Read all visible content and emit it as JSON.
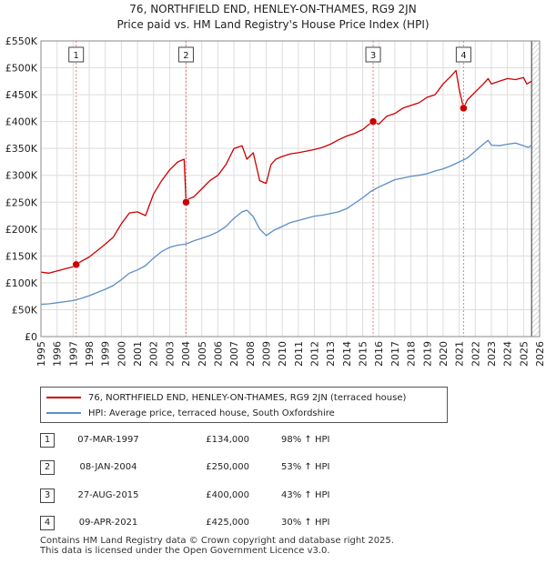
{
  "title_line1": "76, NORTHFIELD END, HENLEY-ON-THAMES, RG9 2JN",
  "title_line2": "Price paid vs. HM Land Registry's House Price Index (HPI)",
  "legend": {
    "property": "76, NORTHFIELD END, HENLEY-ON-THAMES, RG9 2JN (terraced house)",
    "hpi": "HPI: Average price, terraced house, South Oxfordshire"
  },
  "sales": [
    {
      "num": "1",
      "date": "07-MAR-1997",
      "price": "£134,000",
      "hpi": "98% ↑ HPI"
    },
    {
      "num": "2",
      "date": "08-JAN-2004",
      "price": "£250,000",
      "hpi": "53% ↑ HPI"
    },
    {
      "num": "3",
      "date": "27-AUG-2015",
      "price": "£400,000",
      "hpi": "43% ↑ HPI"
    },
    {
      "num": "4",
      "date": "09-APR-2021",
      "price": "£425,000",
      "hpi": "30% ↑ HPI"
    }
  ],
  "footer_line1": "Contains HM Land Registry data © Crown copyright and database right 2025.",
  "footer_line2": "This data is licensed under the Open Government Licence v3.0.",
  "colors": {
    "property": "#cc0000",
    "hpi": "#5b8ec6",
    "grid": "#dddddd",
    "marker_line": "#e08080"
  },
  "chart_data": {
    "type": "line",
    "title": "76, NORTHFIELD END, HENLEY-ON-THAMES, RG9 2JN — Price paid vs. HM Land Registry's House Price Index (HPI)",
    "xlabel": "",
    "ylabel": "",
    "xlim": [
      1995,
      2026
    ],
    "ylim": [
      0,
      550000
    ],
    "x_ticks": [
      1995,
      1996,
      1997,
      1998,
      1999,
      2000,
      2001,
      2002,
      2003,
      2004,
      2005,
      2006,
      2007,
      2008,
      2009,
      2010,
      2011,
      2012,
      2013,
      2014,
      2015,
      2016,
      2017,
      2018,
      2019,
      2020,
      2021,
      2022,
      2023,
      2024,
      2025,
      2026
    ],
    "y_ticks": [
      {
        "value": 0,
        "label": "£0"
      },
      {
        "value": 50000,
        "label": "£50K"
      },
      {
        "value": 100000,
        "label": "£100K"
      },
      {
        "value": 150000,
        "label": "£150K"
      },
      {
        "value": 200000,
        "label": "£200K"
      },
      {
        "value": 250000,
        "label": "£250K"
      },
      {
        "value": 300000,
        "label": "£300K"
      },
      {
        "value": 350000,
        "label": "£350K"
      },
      {
        "value": 400000,
        "label": "£400K"
      },
      {
        "value": 450000,
        "label": "£450K"
      },
      {
        "value": 500000,
        "label": "£500K"
      },
      {
        "value": 550000,
        "label": "£550K"
      }
    ],
    "series": [
      {
        "name": "76, NORTHFIELD END, HENLEY-ON-THAMES, RG9 2JN (terraced house)",
        "x": [
          1995.0,
          1995.5,
          1996.0,
          1996.5,
          1997.0,
          1997.19,
          1997.5,
          1998.0,
          1998.5,
          1999.0,
          1999.5,
          2000.0,
          2000.5,
          2001.0,
          2001.5,
          2002.0,
          2002.5,
          2003.0,
          2003.5,
          2003.9,
          2004.02,
          2004.1,
          2004.5,
          2005.0,
          2005.5,
          2006.0,
          2006.5,
          2007.0,
          2007.5,
          2007.8,
          2008.2,
          2008.6,
          2009.0,
          2009.3,
          2009.6,
          2010.0,
          2010.5,
          2011.0,
          2011.5,
          2012.0,
          2012.5,
          2013.0,
          2013.5,
          2014.0,
          2014.5,
          2015.0,
          2015.4,
          2015.65,
          2016.0,
          2016.5,
          2017.0,
          2017.5,
          2018.0,
          2018.5,
          2019.0,
          2019.5,
          2020.0,
          2020.5,
          2020.8,
          2021.0,
          2021.27,
          2021.5,
          2022.0,
          2022.5,
          2022.8,
          2023.0,
          2023.5,
          2024.0,
          2024.5,
          2025.0,
          2025.2,
          2025.5
        ],
        "y": [
          120000,
          118000,
          122000,
          126000,
          130000,
          134000,
          140000,
          148000,
          160000,
          172000,
          185000,
          210000,
          230000,
          232000,
          225000,
          265000,
          290000,
          310000,
          325000,
          330000,
          250000,
          255000,
          260000,
          275000,
          290000,
          300000,
          320000,
          350000,
          355000,
          330000,
          342000,
          290000,
          285000,
          320000,
          330000,
          335000,
          340000,
          342000,
          345000,
          348000,
          352000,
          358000,
          366000,
          373000,
          378000,
          385000,
          395000,
          400000,
          395000,
          410000,
          415000,
          425000,
          430000,
          435000,
          445000,
          450000,
          470000,
          485000,
          495000,
          460000,
          425000,
          440000,
          455000,
          470000,
          480000,
          470000,
          475000,
          480000,
          478000,
          482000,
          470000,
          475000
        ]
      },
      {
        "name": "HPI: Average price, terraced house, South Oxfordshire",
        "x": [
          1995.0,
          1995.5,
          1996.0,
          1996.5,
          1997.0,
          1997.5,
          1998.0,
          1998.5,
          1999.0,
          1999.5,
          2000.0,
          2000.5,
          2001.0,
          2001.5,
          2002.0,
          2002.5,
          2003.0,
          2003.5,
          2004.0,
          2004.5,
          2005.0,
          2005.5,
          2006.0,
          2006.5,
          2007.0,
          2007.5,
          2007.8,
          2008.2,
          2008.6,
          2009.0,
          2009.5,
          2010.0,
          2010.5,
          2011.0,
          2011.5,
          2012.0,
          2012.5,
          2013.0,
          2013.5,
          2014.0,
          2014.5,
          2015.0,
          2015.5,
          2016.0,
          2016.5,
          2017.0,
          2017.5,
          2018.0,
          2018.5,
          2019.0,
          2019.5,
          2020.0,
          2020.5,
          2021.0,
          2021.5,
          2022.0,
          2022.5,
          2022.8,
          2023.0,
          2023.5,
          2024.0,
          2024.5,
          2025.0,
          2025.3,
          2025.5
        ],
        "y": [
          60000,
          61000,
          63000,
          65000,
          67000,
          71000,
          76000,
          82000,
          88000,
          95000,
          106000,
          118000,
          124000,
          132000,
          146000,
          158000,
          166000,
          170000,
          172000,
          178000,
          183000,
          188000,
          195000,
          205000,
          220000,
          232000,
          235000,
          223000,
          200000,
          188000,
          198000,
          205000,
          212000,
          216000,
          220000,
          224000,
          226000,
          229000,
          232000,
          238000,
          248000,
          258000,
          270000,
          278000,
          285000,
          292000,
          295000,
          298000,
          300000,
          303000,
          308000,
          312000,
          318000,
          325000,
          332000,
          345000,
          358000,
          365000,
          356000,
          355000,
          358000,
          360000,
          355000,
          352000,
          356000
        ]
      }
    ],
    "sales_markers": [
      {
        "label": "1",
        "x": 1997.19,
        "y": 134000
      },
      {
        "label": "2",
        "x": 2004.02,
        "y": 250000
      },
      {
        "label": "3",
        "x": 2015.65,
        "y": 400000
      },
      {
        "label": "4",
        "x": 2021.27,
        "y": 425000
      }
    ],
    "legend_position": "below"
  }
}
